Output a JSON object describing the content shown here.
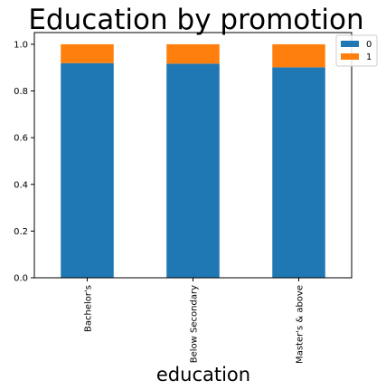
{
  "chart_data": {
    "type": "bar",
    "stacked": true,
    "title": "Education by promotion",
    "xlabel": "education",
    "ylabel": "",
    "categories": [
      "Bachelor's",
      "Below Secondary",
      "Master's & above"
    ],
    "series": [
      {
        "name": "0",
        "color": "#1f77b4",
        "values": [
          0.9192,
          0.9168,
          0.9014
        ]
      },
      {
        "name": "1",
        "color": "#ff7f0e",
        "values": [
          0.0808,
          0.0832,
          0.0986
        ]
      }
    ],
    "ylim": [
      0,
      1.05
    ],
    "yticks": [
      "0.0",
      "0.2",
      "0.4",
      "0.6",
      "0.8",
      "1.0"
    ],
    "ytick_values": [
      0,
      0.2,
      0.4,
      0.6,
      0.8,
      1.0
    ],
    "grid": false,
    "legend_position": "top-right"
  }
}
